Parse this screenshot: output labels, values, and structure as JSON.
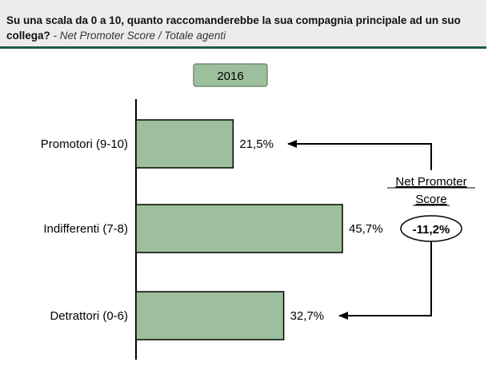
{
  "header": {
    "question": "Su una scala da 0 a 10, quanto raccomanderebbe la sua compagnia principale ad un suo collega?",
    "subtitle": "- Net Promoter Score / Totale agenti"
  },
  "colors": {
    "bar_fill": "#9dbf9d",
    "bar_stroke": "#000000",
    "year_badge_fill": "#9dbf9d",
    "header_bg": "#ececec",
    "header_rule": "#1f5c3f"
  },
  "chart_data": {
    "type": "bar",
    "orientation": "horizontal",
    "year_label": "2016",
    "categories": [
      "Promotori (9-10)",
      "Indifferenti (7-8)",
      "Detrattori (0-6)"
    ],
    "values": [
      21.5,
      45.7,
      32.7
    ],
    "value_labels": [
      "21,5%",
      "45,7%",
      "32,7%"
    ],
    "xlim": [
      0,
      65
    ],
    "grid": false,
    "legend": "none",
    "annotation": {
      "label_line1": "Net Promoter",
      "label_line2": "Score",
      "value_label": "-11,2%",
      "value": -11.2
    }
  }
}
